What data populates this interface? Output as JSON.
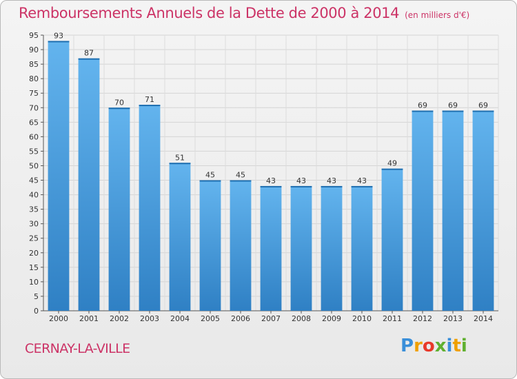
{
  "header": {
    "title": "Remboursements Annuels de la Dette de 2000 à 2014",
    "unit": "(en milliers d'€)"
  },
  "footer": {
    "city": "CERNAY-LA-VILLE",
    "logo_letters": [
      "P",
      "r",
      "o",
      "x",
      "i",
      "t",
      "i"
    ],
    "logo_colors": [
      "#3a8fd9",
      "#f0a000",
      "#e8392a",
      "#60b030",
      "#3a8fd9",
      "#f0a000",
      "#60b030"
    ]
  },
  "colors": {
    "bar_light": "#63b4ee",
    "bar_dark": "#2f80c4",
    "accent": "#cc3366"
  },
  "chart_data": {
    "type": "bar",
    "title": "Remboursements Annuels de la Dette de 2000 à 2014",
    "subtitle": "(en milliers d'€)",
    "xlabel": "",
    "ylabel": "",
    "categories": [
      "2000",
      "2001",
      "2002",
      "2003",
      "2004",
      "2005",
      "2006",
      "2007",
      "2008",
      "2009",
      "2010",
      "2011",
      "2012",
      "2013",
      "2014"
    ],
    "values": [
      93,
      87,
      70,
      71,
      51,
      45,
      45,
      43,
      43,
      43,
      43,
      49,
      69,
      69,
      69
    ],
    "ylim": [
      0,
      95
    ],
    "yticks": [
      0,
      5,
      10,
      15,
      20,
      25,
      30,
      35,
      40,
      45,
      50,
      55,
      60,
      65,
      70,
      75,
      80,
      85,
      90,
      95
    ],
    "grid": true,
    "data_labels": true
  }
}
